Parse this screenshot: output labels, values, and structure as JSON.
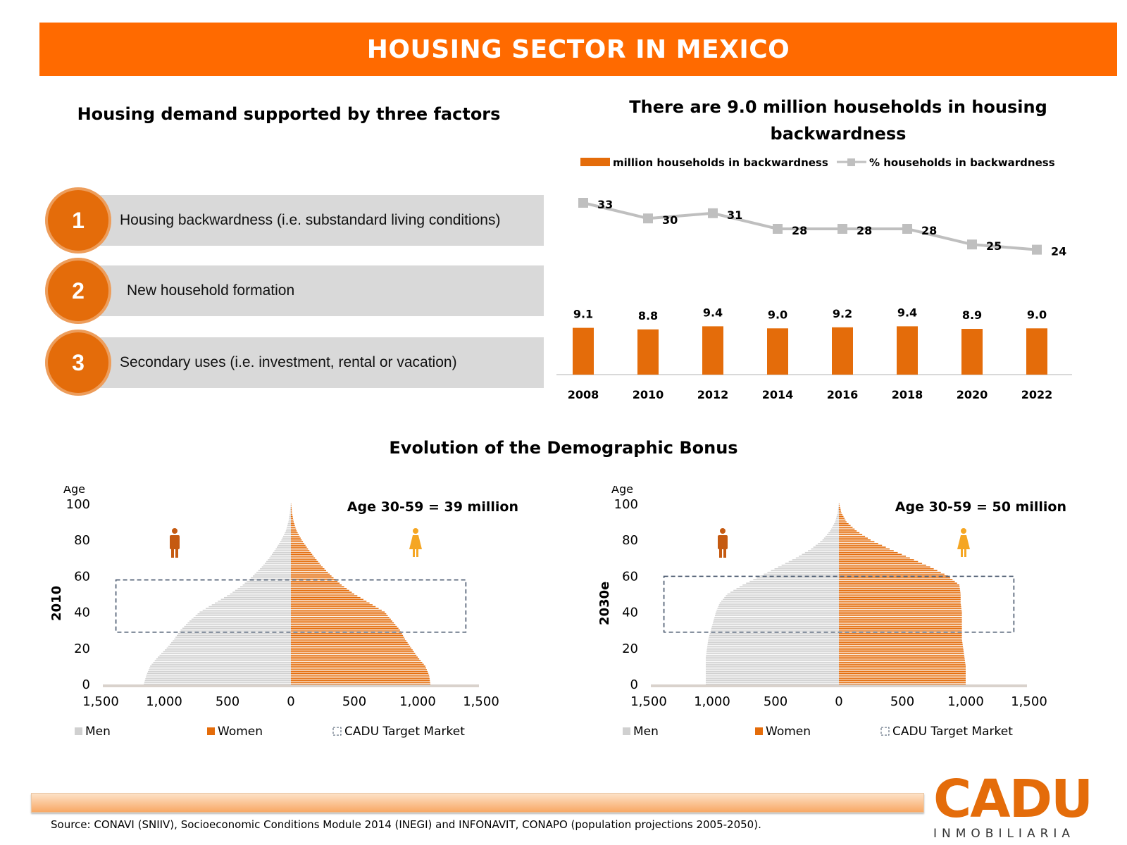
{
  "header": {
    "title": "HOUSING SECTOR IN MEXICO"
  },
  "factors": {
    "title": "Housing demand supported by three factors",
    "items": [
      {
        "num": "1",
        "label": "Housing backwardness (i.e. substandard living conditions)"
      },
      {
        "num": "2",
        "label": "New household formation"
      },
      {
        "num": "3",
        "label": "Secondary uses (i.e. investment, rental or vacation)"
      }
    ]
  },
  "backwardness": {
    "title_line1": "There are 9.0 million households in housing",
    "title_line2": "backwardness"
  },
  "demographic": {
    "title": "Evolution of the Demographic Bonus"
  },
  "colors": {
    "orange": "#e46c0a",
    "banner": "#ff6a00",
    "grey": "#d0d0d0",
    "line": "#bfbfbf",
    "box": "#44546a"
  },
  "chart_data": [
    {
      "type": "bar+line",
      "title": "There are 9.0 million households in housing backwardness",
      "categories": [
        "2008",
        "2010",
        "2012",
        "2014",
        "2016",
        "2018",
        "2020",
        "2022"
      ],
      "series": [
        {
          "name": "million households in backwardness",
          "kind": "bar",
          "values": [
            9.1,
            8.8,
            9.4,
            9.0,
            9.2,
            9.4,
            8.9,
            9.0
          ],
          "labels": [
            "9.1",
            "8.8",
            "9.4",
            "9.0",
            "9.2",
            "9.4",
            "8.9",
            "9.0"
          ]
        },
        {
          "name": "% households in backwardness",
          "kind": "line",
          "values": [
            33,
            30,
            31,
            28,
            28,
            28,
            25,
            24
          ]
        }
      ]
    },
    {
      "type": "population-pyramid",
      "period": "2010",
      "annotation": "Age 30-59 = 39 million",
      "ylabel": "Age",
      "yticks": [
        "100",
        "80",
        "60",
        "40",
        "20",
        "0"
      ],
      "xticks": [
        "1,500",
        "1,000",
        "500",
        "0",
        "500",
        "1,000",
        "1,500"
      ],
      "xlim": [
        -1500,
        1500
      ],
      "ylim": [
        0,
        100
      ],
      "target_range": [
        29,
        58
      ],
      "legend": [
        "Men",
        "Women",
        "CADU Target Market"
      ],
      "age_points": [
        0,
        5,
        10,
        15,
        20,
        25,
        30,
        35,
        40,
        45,
        50,
        55,
        60,
        65,
        70,
        75,
        80,
        85,
        90,
        95,
        100
      ],
      "men": [
        1160,
        1140,
        1110,
        1050,
        980,
        920,
        870,
        800,
        720,
        600,
        480,
        380,
        300,
        230,
        170,
        120,
        75,
        40,
        20,
        8,
        2
      ],
      "women": [
        1100,
        1090,
        1060,
        1000,
        950,
        900,
        860,
        800,
        740,
        620,
        500,
        400,
        320,
        250,
        190,
        135,
        85,
        45,
        22,
        9,
        2
      ]
    },
    {
      "type": "population-pyramid",
      "period": "2030e",
      "annotation": "Age 30-59 = 50 million",
      "ylabel": "Age",
      "yticks": [
        "100",
        "80",
        "60",
        "40",
        "20",
        "0"
      ],
      "xticks": [
        "1,500",
        "1,000",
        "500",
        "0",
        "500",
        "1,000",
        "1,500"
      ],
      "xlim": [
        -1500,
        1500
      ],
      "ylim": [
        0,
        100
      ],
      "target_range": [
        29,
        60
      ],
      "legend": [
        "Men",
        "Women",
        "CADU Target Market"
      ],
      "age_points": [
        0,
        5,
        10,
        15,
        20,
        25,
        30,
        35,
        40,
        45,
        50,
        55,
        60,
        65,
        70,
        75,
        80,
        85,
        90,
        95,
        100
      ],
      "men": [
        1050,
        1050,
        1050,
        1050,
        1040,
        1030,
        1010,
        990,
        970,
        940,
        880,
        760,
        620,
        480,
        340,
        220,
        130,
        70,
        30,
        10,
        2
      ],
      "women": [
        1000,
        1000,
        1000,
        990,
        980,
        970,
        970,
        970,
        970,
        960,
        960,
        950,
        860,
        720,
        560,
        400,
        250,
        140,
        60,
        20,
        3
      ]
    }
  ],
  "footer": {
    "source": "Source: CONAVI (SNIIV), Socioeconomic Conditions Module 2014 (INEGI) and INFONAVIT, CONAPO (population projections 2005-2050)."
  },
  "logo": {
    "mark": "CADU",
    "sub": "INMOBILIARIA"
  }
}
